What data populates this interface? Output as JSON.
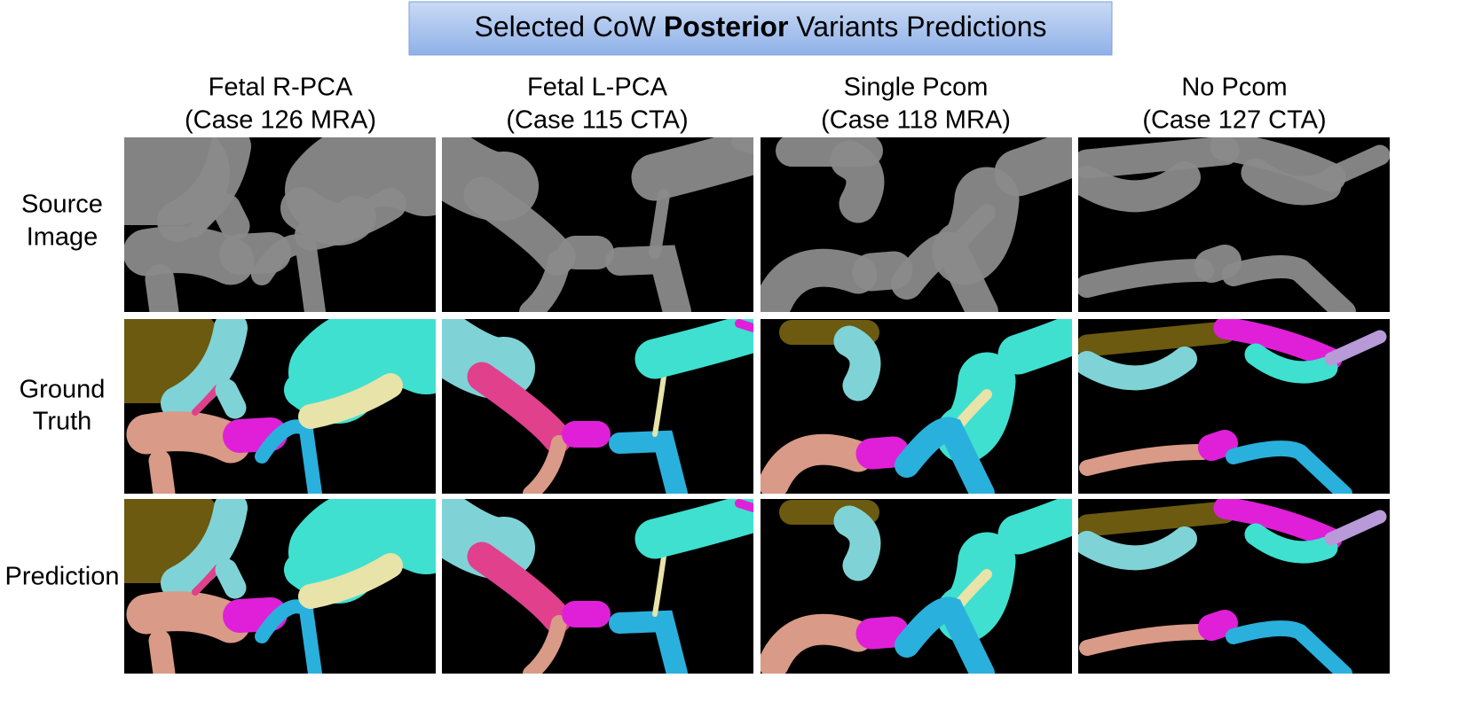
{
  "header": {
    "title": {
      "before": "Selected CoW ",
      "bold": "Posterior",
      "after": " Variants Predictions"
    }
  },
  "columns": [
    {
      "name": "Fetal R-PCA",
      "case": "(Case 126 MRA)"
    },
    {
      "name": "Fetal L-PCA",
      "case": "(Case 115 CTA)"
    },
    {
      "name": "Single Pcom",
      "case": "(Case 118 MRA)"
    },
    {
      "name": "No Pcom",
      "case": "(Case 127 CTA)"
    }
  ],
  "rows": [
    {
      "lines": [
        "Source",
        "Image"
      ]
    },
    {
      "lines": [
        "Ground",
        "Truth"
      ]
    },
    {
      "lines": [
        "Prediction"
      ]
    }
  ]
}
